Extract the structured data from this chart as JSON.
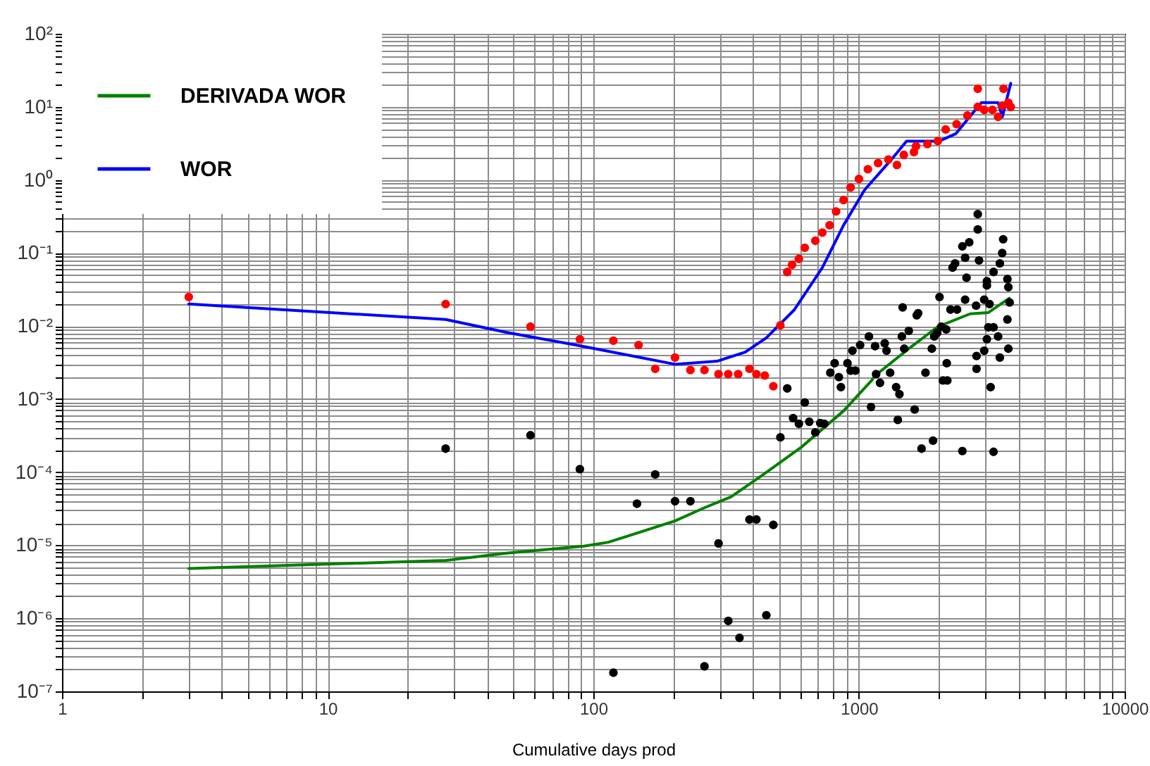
{
  "chart_data": {
    "type": "line",
    "xlabel": "Cumulative days prod",
    "log": "xy",
    "grid": true,
    "legend": "top left",
    "xlim": [
      1,
      10000
    ],
    "xticks": [
      1,
      10,
      100,
      1000,
      10000
    ],
    "ylim": [
      1e-07,
      100
    ],
    "yticks": [
      {
        "value": 100,
        "label": "10²"
      },
      {
        "value": 10,
        "label": "10¹"
      },
      {
        "value": 1,
        "label": "10⁰"
      },
      {
        "value": 0.1,
        "label": "10⁻¹"
      },
      {
        "value": 0.01,
        "label": "10⁻²"
      },
      {
        "value": 0.001,
        "label": "10⁻³"
      },
      {
        "value": 0.0001,
        "label": "10⁻⁴"
      },
      {
        "value": 1e-05,
        "label": "10⁻⁵"
      },
      {
        "value": 1e-06,
        "label": "10⁻⁶"
      },
      {
        "value": 1e-07,
        "label": "10⁻⁷"
      }
    ],
    "series": [
      {
        "name": "DERIVADA WOR",
        "type": "line",
        "color": "#008000",
        "x": [
          3,
          27.8,
          47,
          92,
          114,
          203,
          259,
          330,
          437,
          607,
          875,
          1116,
          1150,
          1550,
          1980,
          2620,
          3070,
          3680
        ],
        "values": [
          4.8e-06,
          6.2e-06,
          7.8e-06,
          9.7e-06,
          1.1e-05,
          2.15e-05,
          3.2e-05,
          4.6e-05,
          9.3e-05,
          0.00022,
          0.00069,
          0.0018,
          0.0021,
          0.005,
          0.0098,
          0.0147,
          0.0153,
          0.024
        ]
      },
      {
        "name": "WOR",
        "type": "line",
        "color": "#0000ff",
        "x": [
          3,
          27.8,
          47,
          86,
          203,
          292,
          373,
          448,
          571,
          728,
          875,
          1050,
          1340,
          1510,
          2005,
          2317,
          2886,
          3340,
          3465,
          3727
        ],
        "values": [
          0.02,
          0.0123,
          0.0082,
          0.0055,
          0.003,
          0.0033,
          0.0044,
          0.0069,
          0.0167,
          0.063,
          0.24,
          0.73,
          2.0,
          3.4,
          3.4,
          4.3,
          11.4,
          11.4,
          7.3,
          21
        ]
      },
      {
        "type": "scatter",
        "marker": "circle",
        "color": "#ff0000",
        "x": [
          3,
          27.8,
          58,
          89,
          119,
          148,
          171,
          203,
          232,
          262,
          296,
          322,
          351,
          387,
          411,
          442,
          476,
          506,
          537,
          560,
          594,
          625,
          685,
          728,
          775,
          820,
          875,
          930,
          1000,
          1080,
          1180,
          1290,
          1390,
          1475,
          1610,
          1640,
          1810,
          1980,
          2120,
          2330,
          2560,
          2800,
          2800,
          2960,
          3180,
          3340,
          3460,
          3500,
          3650,
          3727
        ],
        "values": [
          0.025,
          0.02,
          0.0098,
          0.0066,
          0.0063,
          0.0055,
          0.0026,
          0.0037,
          0.0025,
          0.0025,
          0.0022,
          0.0022,
          0.0022,
          0.0026,
          0.0022,
          0.0021,
          0.0015,
          0.0102,
          0.055,
          0.069,
          0.083,
          0.118,
          0.147,
          0.19,
          0.24,
          0.37,
          0.53,
          0.79,
          1.03,
          1.4,
          1.7,
          1.9,
          1.6,
          2.2,
          2.4,
          2.9,
          3.1,
          3.4,
          4.9,
          5.8,
          7.6,
          10,
          17.7,
          9.1,
          9.1,
          7.3,
          10.4,
          17.7,
          11.4,
          10
        ]
      },
      {
        "type": "scatter",
        "marker": "circle",
        "color": "#000000",
        "x": [
          27.8,
          58,
          89,
          119,
          146,
          171,
          203,
          232,
          262,
          296,
          322,
          355,
          387,
          411,
          448,
          476,
          506,
          537,
          565,
          594,
          625,
          650,
          685,
          715,
          740,
          780,
          810,
          855,
          840,
          905,
          930,
          945,
          970,
          1010,
          1090,
          1150,
          1110,
          1160,
          1200,
          1250,
          1270,
          1310,
          1380,
          1420,
          1400,
          1450,
          1480,
          1540,
          1620,
          1720,
          1650,
          1670,
          1780,
          1900,
          1880,
          1920,
          1970,
          2010,
          2040,
          2070,
          2150,
          2140,
          2130,
          2210,
          2340,
          2250,
          2300,
          2450,
          2600,
          2510,
          2540,
          2800,
          2800,
          2830,
          3030,
          3030,
          2960,
          3070,
          2770,
          2770,
          3030,
          3130,
          3340,
          2960,
          3390,
          3210,
          2450,
          3210,
          3390,
          3460,
          3490,
          3620,
          3650,
          3620,
          3650,
          3690,
          3210,
          1460,
          2510,
          2760,
          3100
        ],
        "values": [
          0.00021,
          0.00032,
          0.00011,
          1.8e-07,
          3.7e-05,
          9.3e-05,
          4e-05,
          4e-05,
          2.2e-07,
          1.06e-05,
          9.2e-07,
          5.4e-07,
          2.25e-05,
          2.25e-05,
          1.1e-06,
          1.9e-05,
          0.0003,
          0.0014,
          0.00055,
          0.00046,
          0.0009,
          0.00049,
          0.00035,
          0.00047,
          0.00046,
          0.0023,
          0.0031,
          0.00146,
          0.002,
          0.0031,
          0.00245,
          0.0046,
          0.00245,
          0.0055,
          0.0072,
          0.0053,
          0.00078,
          0.0022,
          0.00167,
          0.0058,
          0.0046,
          0.0023,
          0.00146,
          0.00117,
          0.00052,
          0.0072,
          0.0049,
          0.0086,
          0.00072,
          0.00021,
          0.014,
          0.015,
          0.0023,
          0.00027,
          0.0049,
          0.0072,
          0.0081,
          0.025,
          0.0098,
          0.0018,
          0.0018,
          0.0031,
          0.009,
          0.0168,
          0.0168,
          0.063,
          0.072,
          0.123,
          0.14,
          0.086,
          0.046,
          0.21,
          0.34,
          0.079,
          0.041,
          0.036,
          0.023,
          0.0096,
          0.0039,
          0.0026,
          0.0066,
          0.00146,
          0.0072,
          0.0046,
          0.0037,
          0.00019,
          0.000195,
          0.055,
          0.072,
          0.1,
          0.154,
          0.044,
          0.034,
          0.0123,
          0.0049,
          0.021,
          0.0096,
          0.018,
          0.023,
          0.019,
          0.02
        ]
      }
    ]
  }
}
